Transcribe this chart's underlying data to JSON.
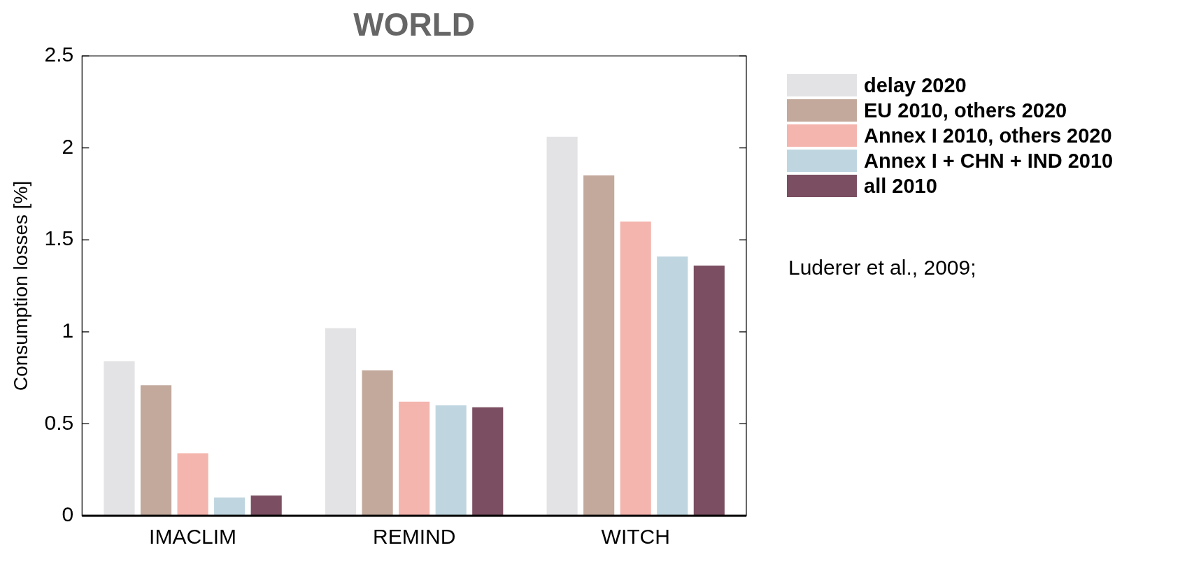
{
  "chart_data": {
    "type": "bar",
    "title": "WORLD",
    "ylabel": "Consumption losses [%]",
    "categories": [
      "IMACLIM",
      "REMIND",
      "WITCH"
    ],
    "series": [
      {
        "name": "delay 2020",
        "color": "#e3e3e5",
        "values": [
          0.84,
          1.02,
          2.06
        ]
      },
      {
        "name": "EU 2010, others 2020",
        "color": "#c2a99b",
        "values": [
          0.71,
          0.79,
          1.85
        ]
      },
      {
        "name": "Annex I 2010, others 2020",
        "color": "#f4b5ae",
        "values": [
          0.34,
          0.62,
          1.6
        ]
      },
      {
        "name": "Annex I + CHN + IND 2010",
        "color": "#bfd6e0",
        "values": [
          0.1,
          0.6,
          1.41
        ]
      },
      {
        "name": "all 2010",
        "color": "#7b4f61",
        "values": [
          0.11,
          0.59,
          1.36
        ]
      }
    ],
    "ylim": [
      0,
      2.5
    ],
    "yticks": [
      0,
      0.5,
      1,
      1.5,
      2,
      2.5
    ],
    "grid": false,
    "legend": "right",
    "annotations": [
      "Luderer et al., 2009;"
    ]
  }
}
